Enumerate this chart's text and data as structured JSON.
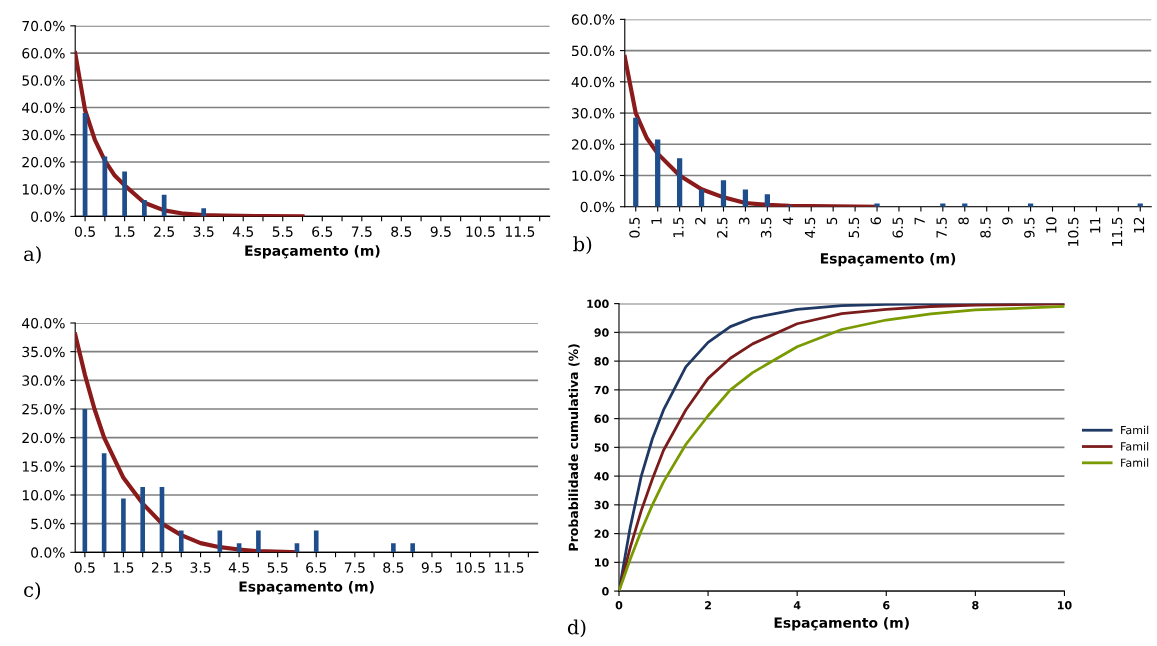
{
  "chart_data": [
    {
      "type": "bar",
      "xlabel": "Espaçamento (m)",
      "annotations": [
        "a)"
      ],
      "grid": "y",
      "x": [
        0.5,
        1,
        1.5,
        2,
        2.5,
        3,
        3.5,
        4,
        4.5,
        5,
        5.5,
        6,
        6.5,
        7,
        7.5,
        8,
        8.5,
        9,
        9.5,
        10,
        10.5,
        11,
        11.5,
        12
      ],
      "xlim": [
        0.25,
        12.25
      ],
      "xticks": [
        {
          "value": 0.5,
          "label": "0.5"
        },
        {
          "value": 1,
          "label": null
        },
        {
          "value": 1.5,
          "label": "1.5"
        },
        {
          "value": 2,
          "label": null
        },
        {
          "value": 2.5,
          "label": "2.5"
        },
        {
          "value": 3,
          "label": null
        },
        {
          "value": 3.5,
          "label": "3.5"
        },
        {
          "value": 4,
          "label": null
        },
        {
          "value": 4.5,
          "label": "4.5"
        },
        {
          "value": 5,
          "label": null
        },
        {
          "value": 5.5,
          "label": "5.5"
        },
        {
          "value": 6,
          "label": null
        },
        {
          "value": 6.5,
          "label": "6.5"
        },
        {
          "value": 7,
          "label": null
        },
        {
          "value": 7.5,
          "label": "7.5"
        },
        {
          "value": 8,
          "label": null
        },
        {
          "value": 8.5,
          "label": "8.5"
        },
        {
          "value": 9,
          "label": null
        },
        {
          "value": 9.5,
          "label": "9.5"
        },
        {
          "value": 10,
          "label": null
        },
        {
          "value": 10.5,
          "label": "10.5"
        },
        {
          "value": 11,
          "label": null
        },
        {
          "value": 11.5,
          "label": "11.5"
        },
        {
          "value": 12,
          "label": null
        }
      ],
      "ylim": [
        0,
        70
      ],
      "yticks": [
        {
          "value": 0,
          "label": "0.0%"
        },
        {
          "value": 10,
          "label": "10.0%"
        },
        {
          "value": 20,
          "label": "20.0%"
        },
        {
          "value": 30,
          "label": "30.0%"
        },
        {
          "value": 40,
          "label": "40.0%"
        },
        {
          "value": 50,
          "label": "50.0%"
        },
        {
          "value": 60,
          "label": "60.0%"
        },
        {
          "value": 70,
          "label": "70.0%"
        }
      ],
      "series": [
        {
          "type": "bar",
          "color": "#1f4e8c",
          "values": [
            38,
            22,
            16.5,
            6,
            8,
            0,
            3,
            0,
            0,
            0,
            0,
            0,
            0,
            0,
            0,
            0,
            0,
            0,
            0,
            0,
            0,
            0,
            0,
            0
          ]
        },
        {
          "type": "line",
          "color": "#8b1a1a",
          "x": [
            0.25,
            0.5,
            0.75,
            1,
            1.25,
            1.5,
            2,
            2.5,
            3,
            3.5,
            4,
            5,
            6
          ],
          "values": [
            60,
            39,
            28,
            20.5,
            15,
            11.4,
            5,
            2.2,
            1,
            0.5,
            0.3,
            0.1,
            0
          ]
        }
      ]
    },
    {
      "type": "bar",
      "xlabel": "Espaçamento (m)",
      "annotations": [
        "b)"
      ],
      "grid": "y",
      "x": [
        0.5,
        1,
        1.5,
        2,
        2.5,
        3,
        3.5,
        4,
        4.5,
        5,
        5.5,
        6,
        6.5,
        7,
        7.5,
        8,
        8.5,
        9,
        9.5,
        10,
        10.5,
        11,
        11.5,
        12
      ],
      "xlim": [
        0.25,
        12.25
      ],
      "xticks": [
        0.5,
        1,
        1.5,
        2,
        2.5,
        3,
        3.5,
        4,
        4.5,
        5,
        5.5,
        6,
        6.5,
        7,
        7.5,
        8,
        8.5,
        9,
        9.5,
        10,
        10.5,
        11,
        11.5,
        12
      ],
      "ylim": [
        0,
        60
      ],
      "yticks": [
        {
          "value": 0,
          "label": "0.0%"
        },
        {
          "value": 10,
          "label": "10.0%"
        },
        {
          "value": 20,
          "label": "20.0%"
        },
        {
          "value": 30,
          "label": "30.0%"
        },
        {
          "value": 40,
          "label": "40.0%"
        },
        {
          "value": 50,
          "label": "50.0%"
        },
        {
          "value": 60,
          "label": "60.0%"
        }
      ],
      "series": [
        {
          "type": "bar",
          "color": "#1f4e8c",
          "values": [
            28.5,
            21.5,
            15.5,
            5.5,
            8.5,
            5.5,
            4,
            0.5,
            0,
            0,
            0,
            1,
            0,
            0,
            1,
            1,
            0,
            0,
            1,
            0,
            0,
            0,
            0,
            1
          ]
        },
        {
          "type": "line",
          "color": "#8b1a1a",
          "x": [
            0.25,
            0.5,
            0.75,
            1,
            1.5,
            2,
            2.5,
            3,
            3.5,
            4,
            5,
            6
          ],
          "values": [
            48,
            30,
            22,
            17,
            10,
            5.6,
            3,
            1.2,
            0.6,
            0.3,
            0.1,
            0
          ]
        }
      ]
    },
    {
      "type": "bar",
      "xlabel": "Espaçamento (m)",
      "annotations": [
        "c)"
      ],
      "grid": "y",
      "x": [
        0.5,
        1,
        1.5,
        2,
        2.5,
        3,
        3.5,
        4,
        4.5,
        5,
        5.5,
        6,
        6.5,
        7,
        7.5,
        8,
        8.5,
        9,
        9.5,
        10,
        10.5,
        11,
        11.5,
        12
      ],
      "xlim": [
        0.25,
        12.25
      ],
      "xticks": [
        {
          "value": 0.5,
          "label": "0.5"
        },
        {
          "value": 1,
          "label": null
        },
        {
          "value": 1.5,
          "label": "1.5"
        },
        {
          "value": 2,
          "label": null
        },
        {
          "value": 2.5,
          "label": "2.5"
        },
        {
          "value": 3,
          "label": null
        },
        {
          "value": 3.5,
          "label": "3.5"
        },
        {
          "value": 4,
          "label": null
        },
        {
          "value": 4.5,
          "label": "4.5"
        },
        {
          "value": 5,
          "label": null
        },
        {
          "value": 5.5,
          "label": "5.5"
        },
        {
          "value": 6,
          "label": null
        },
        {
          "value": 6.5,
          "label": "6.5"
        },
        {
          "value": 7,
          "label": null
        },
        {
          "value": 7.5,
          "label": "7.5"
        },
        {
          "value": 8,
          "label": null
        },
        {
          "value": 8.5,
          "label": "8.5"
        },
        {
          "value": 9,
          "label": null
        },
        {
          "value": 9.5,
          "label": "9.5"
        },
        {
          "value": 10,
          "label": null
        },
        {
          "value": 10.5,
          "label": "10.5"
        },
        {
          "value": 11,
          "label": null
        },
        {
          "value": 11.5,
          "label": "11.5"
        },
        {
          "value": 12,
          "label": null
        }
      ],
      "ylim": [
        0,
        40
      ],
      "yticks": [
        {
          "value": 0,
          "label": "0.0%"
        },
        {
          "value": 5,
          "label": "5.0%"
        },
        {
          "value": 10,
          "label": "10.0%"
        },
        {
          "value": 15,
          "label": "15.0%"
        },
        {
          "value": 20,
          "label": "20.0%"
        },
        {
          "value": 25,
          "label": "25.0%"
        },
        {
          "value": 30,
          "label": "30.0%"
        },
        {
          "value": 35,
          "label": "35.0%"
        },
        {
          "value": 40,
          "label": "40.0%"
        }
      ],
      "series": [
        {
          "type": "bar",
          "color": "#1f4e8c",
          "values": [
            25,
            17.3,
            9.4,
            11.4,
            11.4,
            3.8,
            0,
            3.8,
            1.6,
            3.8,
            0,
            1.6,
            3.8,
            0,
            0,
            0,
            1.6,
            1.6,
            0,
            0,
            0,
            0,
            0,
            0
          ]
        },
        {
          "type": "line",
          "color": "#8b1a1a",
          "x": [
            0.25,
            0.5,
            0.75,
            1,
            1.5,
            2,
            2.5,
            3,
            3.5,
            4,
            4.5,
            5,
            6
          ],
          "values": [
            38,
            31,
            25,
            20,
            13,
            8.5,
            5,
            3,
            1.6,
            0.9,
            0.5,
            0.2,
            0
          ]
        }
      ]
    },
    {
      "type": "line",
      "xlabel": "Espaçamento (m)",
      "ylabel": "Probabilidade cumulativa (%)",
      "annotations": [
        "d)"
      ],
      "grid": "y",
      "legend": "right",
      "x": [
        0,
        0.25,
        0.5,
        0.75,
        1,
        1.5,
        2,
        2.5,
        3,
        4,
        5,
        6,
        7,
        8,
        10
      ],
      "xlim": [
        0,
        10
      ],
      "xticks": [
        0,
        2,
        4,
        6,
        8,
        10
      ],
      "ylim": [
        0,
        100
      ],
      "yticks": [
        0,
        10,
        20,
        30,
        40,
        50,
        60,
        70,
        80,
        90,
        100
      ],
      "series": [
        {
          "name": "Famil",
          "color": "#1f3864",
          "values": [
            0,
            22,
            40,
            53,
            63,
            78,
            86.5,
            92,
            95,
            98,
            99.3,
            99.7,
            99.9,
            100,
            100
          ]
        },
        {
          "name": "Famil",
          "color": "#7b1c1c",
          "values": [
            0,
            15,
            28,
            39,
            49,
            63,
            74,
            81,
            86,
            93,
            96.5,
            98,
            99,
            99.5,
            99.9
          ]
        },
        {
          "name": "Famil",
          "color": "#7a9a01",
          "values": [
            0,
            11,
            21,
            30,
            38,
            51,
            61,
            70,
            76,
            85,
            91,
            94.3,
            96.4,
            97.8,
            99
          ]
        }
      ]
    }
  ]
}
